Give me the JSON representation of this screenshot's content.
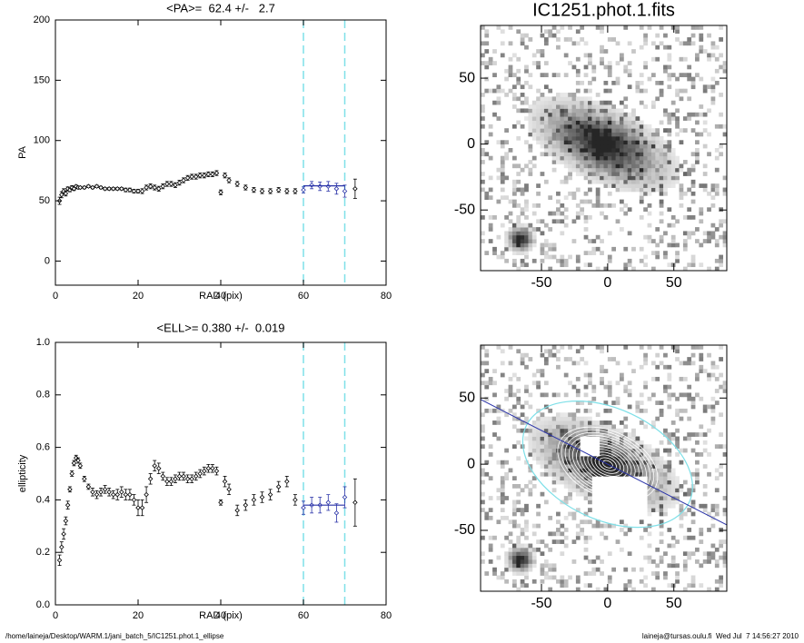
{
  "chart_data": [
    {
      "type": "errorscatter",
      "title": "<PA>=  62.4 +/-   2.7",
      "xlabel": "RAD (pix)",
      "ylabel": "PA",
      "x": [
        1,
        1.5,
        2,
        2.5,
        3,
        3.5,
        4,
        4.5,
        5,
        5.5,
        6,
        7,
        8,
        9,
        10,
        11,
        12,
        13,
        14,
        15,
        16,
        17,
        18,
        19,
        20,
        21,
        22,
        23,
        24,
        25,
        26,
        27,
        28,
        29,
        30,
        31,
        32,
        33,
        34,
        35,
        36,
        37,
        38,
        39,
        40,
        41,
        42,
        44,
        46,
        48,
        50,
        52,
        54,
        56,
        58,
        60,
        62,
        64,
        66,
        68,
        70,
        72.5
      ],
      "values": [
        50,
        55,
        58,
        56,
        60,
        59,
        61,
        60,
        62,
        61,
        61,
        61,
        62,
        61,
        62,
        61,
        60,
        60,
        60,
        60,
        60,
        59,
        59,
        58,
        58,
        58,
        61,
        62,
        61,
        60,
        62,
        64,
        64,
        63,
        65,
        67,
        69,
        70,
        70,
        71,
        71,
        72,
        72,
        73,
        57,
        71,
        67,
        64,
        61,
        59,
        58,
        58,
        59,
        58,
        58,
        59,
        63,
        62,
        62,
        60,
        58,
        60
      ],
      "errors": [
        3,
        2.5,
        2,
        2,
        1.5,
        1.5,
        1.5,
        1.5,
        1,
        1,
        1,
        1,
        1,
        1,
        1,
        1,
        1,
        1,
        1,
        1,
        1,
        1.5,
        1.5,
        1.5,
        1.5,
        2,
        2,
        2,
        2,
        2,
        2,
        2,
        2,
        2,
        2,
        2,
        2,
        2,
        2,
        2,
        2,
        2,
        2,
        2,
        2,
        2,
        2,
        2,
        2,
        2,
        2,
        2,
        2,
        2,
        2,
        2.5,
        3,
        3.5,
        4,
        4.5,
        5,
        8
      ],
      "xlim": [
        0,
        80
      ],
      "ylim": [
        -20,
        200
      ],
      "xticks": [
        0,
        20,
        40,
        60,
        80
      ],
      "yticks": [
        0,
        50,
        100,
        150,
        200
      ],
      "color": "#000000",
      "vlines": [
        60,
        70
      ],
      "vline_color": "#7fe0e8",
      "fit": {
        "x": [
          60,
          70
        ],
        "y": 62.4
      },
      "fit_color": "#2a33a8"
    },
    {
      "type": "errorscatter",
      "title": "<ELL>= 0.380 +/-  0.019",
      "xlabel": "RAD (pix)",
      "ylabel": "ellipticity",
      "x": [
        1,
        1.5,
        2,
        2.5,
        3,
        3.5,
        4,
        4.5,
        5,
        5.5,
        6,
        7,
        8,
        9,
        10,
        11,
        12,
        13,
        14,
        15,
        16,
        17,
        18,
        19,
        20,
        21,
        22,
        23,
        24,
        25,
        26,
        27,
        28,
        29,
        30,
        31,
        32,
        33,
        34,
        35,
        36,
        37,
        38,
        39,
        40,
        41,
        42,
        44,
        46,
        48,
        50,
        52,
        54,
        56,
        58,
        60,
        62,
        64,
        66,
        68,
        70,
        72.5
      ],
      "values": [
        0.17,
        0.22,
        0.27,
        0.32,
        0.38,
        0.44,
        0.5,
        0.54,
        0.56,
        0.55,
        0.53,
        0.48,
        0.45,
        0.43,
        0.42,
        0.43,
        0.44,
        0.43,
        0.42,
        0.42,
        0.43,
        0.42,
        0.42,
        0.4,
        0.37,
        0.37,
        0.42,
        0.48,
        0.53,
        0.52,
        0.49,
        0.47,
        0.47,
        0.48,
        0.49,
        0.49,
        0.48,
        0.48,
        0.49,
        0.5,
        0.51,
        0.52,
        0.52,
        0.51,
        0.39,
        0.47,
        0.44,
        0.36,
        0.38,
        0.4,
        0.41,
        0.42,
        0.45,
        0.47,
        0.4,
        0.37,
        0.38,
        0.38,
        0.39,
        0.35,
        0.41,
        0.39
      ],
      "errors": [
        0.02,
        0.02,
        0.02,
        0.015,
        0.015,
        0.01,
        0.01,
        0.01,
        0.01,
        0.01,
        0.01,
        0.01,
        0.01,
        0.015,
        0.015,
        0.015,
        0.015,
        0.015,
        0.015,
        0.02,
        0.02,
        0.02,
        0.02,
        0.02,
        0.03,
        0.03,
        0.03,
        0.02,
        0.02,
        0.02,
        0.015,
        0.015,
        0.015,
        0.015,
        0.015,
        0.015,
        0.015,
        0.015,
        0.015,
        0.015,
        0.015,
        0.015,
        0.015,
        0.015,
        0.01,
        0.02,
        0.02,
        0.02,
        0.02,
        0.02,
        0.02,
        0.02,
        0.02,
        0.02,
        0.02,
        0.025,
        0.03,
        0.03,
        0.03,
        0.035,
        0.04,
        0.09
      ],
      "xlim": [
        0,
        80
      ],
      "ylim": [
        0,
        1
      ],
      "xticks": [
        0,
        20,
        40,
        60,
        80
      ],
      "yticks": [
        {
          "value": 0,
          "label": "0.0"
        },
        {
          "value": 0.2,
          "label": "0.2"
        },
        {
          "value": 0.4,
          "label": "0.4"
        },
        {
          "value": 0.6,
          "label": "0.6"
        },
        {
          "value": 0.8,
          "label": "0.8"
        },
        {
          "value": 1,
          "label": "1.0"
        }
      ],
      "color": "#000000",
      "vlines": [
        60,
        70
      ],
      "vline_color": "#7fe0e8",
      "fit": {
        "x": [
          60,
          70
        ],
        "y": 0.38
      },
      "fit_color": "#2a33a8"
    },
    {
      "type": "image",
      "title": "IC1251.phot.1.fits",
      "xlim": [
        -96,
        90
      ],
      "ylim": [
        -96,
        90
      ],
      "xticks": [
        -50,
        0,
        50
      ],
      "yticks": [
        -50,
        0,
        50
      ]
    },
    {
      "type": "image",
      "overlay": true,
      "xlim": [
        -96,
        90
      ],
      "ylim": [
        -96,
        90
      ],
      "xticks": [
        -50,
        0,
        50
      ],
      "yticks": [
        -50,
        0,
        50
      ]
    }
  ],
  "footer": {
    "left": "/home/laineja/Desktop/WARM.1/jani_batch_5/IC1251.phot.1_ellipse",
    "right": "laineja@tursas.oulu.fi  Wed Jul  7 14:56:27 2010"
  }
}
